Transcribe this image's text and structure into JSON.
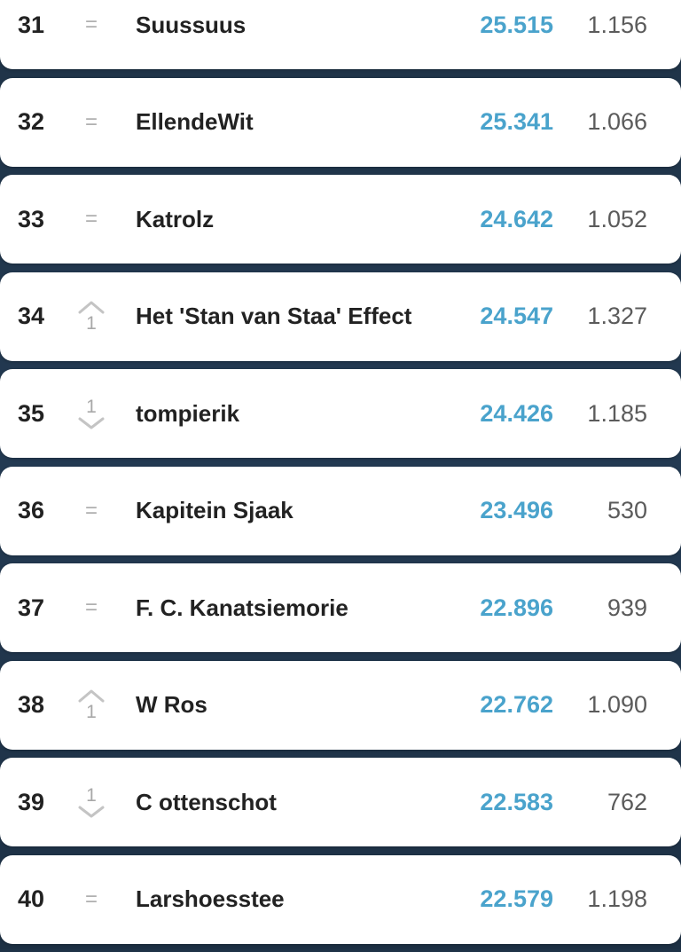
{
  "standings": [
    {
      "rank": "31",
      "move": "same",
      "move_symbol": "=",
      "move_value": "",
      "name": "Suussuus",
      "points": "25.515",
      "round_points": "1.156"
    },
    {
      "rank": "32",
      "move": "same",
      "move_symbol": "=",
      "move_value": "",
      "name": "EllendeWit",
      "points": "25.341",
      "round_points": "1.066"
    },
    {
      "rank": "33",
      "move": "same",
      "move_symbol": "=",
      "move_value": "",
      "name": "Katrolz",
      "points": "24.642",
      "round_points": "1.052"
    },
    {
      "rank": "34",
      "move": "up",
      "move_symbol": "",
      "move_value": "1",
      "name": "Het 'Stan van Staa' Effect",
      "points": "24.547",
      "round_points": "1.327"
    },
    {
      "rank": "35",
      "move": "down",
      "move_symbol": "",
      "move_value": "1",
      "name": "tompierik",
      "points": "24.426",
      "round_points": "1.185"
    },
    {
      "rank": "36",
      "move": "same",
      "move_symbol": "=",
      "move_value": "",
      "name": "Kapitein Sjaak",
      "points": "23.496",
      "round_points": "530"
    },
    {
      "rank": "37",
      "move": "same",
      "move_symbol": "=",
      "move_value": "",
      "name": "F. C. Kanatsiemorie",
      "points": "22.896",
      "round_points": "939"
    },
    {
      "rank": "38",
      "move": "up",
      "move_symbol": "",
      "move_value": "1",
      "name": "W Ros",
      "points": "22.762",
      "round_points": "1.090"
    },
    {
      "rank": "39",
      "move": "down",
      "move_symbol": "",
      "move_value": "1",
      "name": "C ottenschot",
      "points": "22.583",
      "round_points": "762"
    },
    {
      "rank": "40",
      "move": "same",
      "move_symbol": "=",
      "move_value": "",
      "name": "Larshoesstee",
      "points": "22.579",
      "round_points": "1.198"
    }
  ],
  "icons": {
    "up": "chevron-up-icon",
    "down": "chevron-down-icon",
    "same": "equals-icon"
  },
  "colors": {
    "points": "#4aa3cc",
    "round_points": "#5b5b5b",
    "background": "#1f3347"
  }
}
